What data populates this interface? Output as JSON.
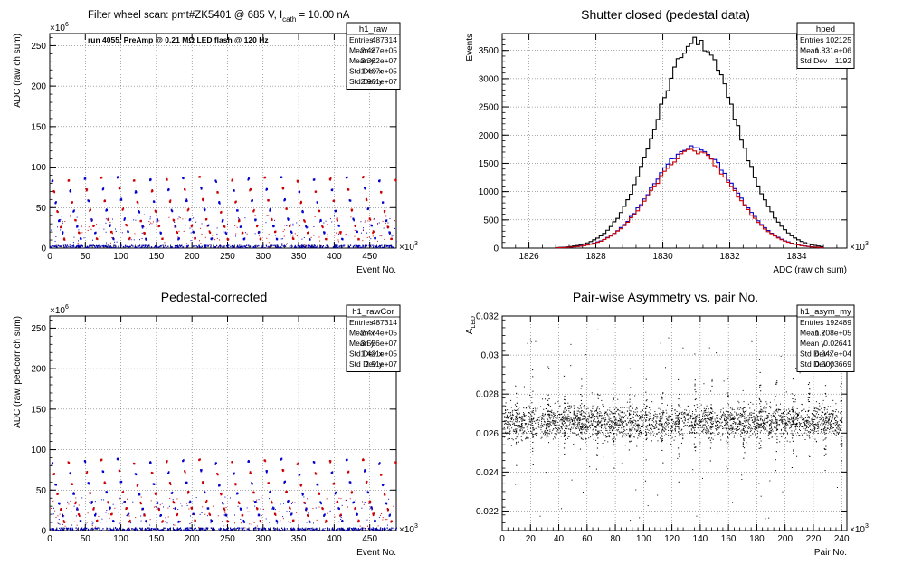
{
  "chart_data": [
    {
      "id": "raw",
      "type": "scatter",
      "title": "Filter wheel scan: pmt#ZK5401 @   685 V, I",
      "title_sub": "cath",
      "title_tail": " = 10.00 nA",
      "annotation": "run 4055, PreAmp @ 0.21 MΩ LED flash @  120 Hz",
      "xlabel": "Event No.",
      "ylabel": "ADC (raw ch sum)",
      "x_exponent": "×10",
      "x_exponent_power": "3",
      "y_exponent": "×10",
      "y_exponent_power": "6",
      "xlim": [
        0,
        487.3
      ],
      "ylim": [
        0,
        265
      ],
      "xticks": [
        0,
        50,
        100,
        150,
        200,
        250,
        300,
        350,
        400,
        450
      ],
      "xtick_labels": [
        "0",
        "50",
        "100",
        "150",
        "200",
        "250",
        "300",
        "350",
        "400",
        "450"
      ],
      "yticks": [
        0,
        50,
        100,
        150,
        200,
        250
      ],
      "ytick_labels": [
        "0",
        "50",
        "100",
        "150",
        "200",
        "250"
      ],
      "grid": true,
      "cycle_period": 23.0,
      "levels": [
        88,
        74,
        60,
        48,
        36,
        28,
        20,
        12
      ],
      "series_colors": [
        "#0000cc",
        "#cc0000"
      ],
      "stats": {
        "name": "h1_raw",
        "rows": [
          {
            "label": "Entries",
            "value": "487314"
          },
          {
            "label": "Mean x",
            "value": "2.437e+05"
          },
          {
            "label": "Mean y",
            "value": "3.362e+07"
          },
          {
            "label": "Std Dev x",
            "value": "1.407e+05"
          },
          {
            "label": "Std Dev y",
            "value": "2.961e+07"
          }
        ]
      }
    },
    {
      "id": "ped",
      "type": "histogram",
      "title": "Shutter closed (pedestal data)",
      "xlabel": "ADC (raw ch sum)",
      "ylabel": "Events",
      "x_exponent": "×10",
      "x_exponent_power": "3",
      "xlim": [
        1825.2,
        1835.5
      ],
      "ylim": [
        0,
        3800
      ],
      "xticks": [
        1826,
        1828,
        1830,
        1832,
        1834
      ],
      "xtick_labels": [
        "1826",
        "1828",
        "1830",
        "1832",
        "1834"
      ],
      "yticks": [
        0,
        500,
        1000,
        1500,
        2000,
        2500,
        3000,
        3500
      ],
      "ytick_labels": [
        "0",
        "500",
        "1000",
        "1500",
        "2000",
        "2500",
        "3000",
        "3500"
      ],
      "grid": true,
      "series": [
        {
          "color": "#000000",
          "peak": 3650,
          "center": 1831.0,
          "sigma": 1.2
        },
        {
          "color": "#0000cc",
          "peak": 1800,
          "center": 1830.9,
          "sigma": 1.2
        },
        {
          "color": "#cc0000",
          "peak": 1720,
          "center": 1830.9,
          "sigma": 1.2
        }
      ],
      "stats": {
        "name": "hped",
        "rows": [
          {
            "label": "Entries",
            "value": "102125"
          },
          {
            "label": "Mean",
            "value": "1.831e+06"
          },
          {
            "label": "Std Dev",
            "value": "1192"
          }
        ]
      }
    },
    {
      "id": "cor",
      "type": "scatter",
      "title": "Pedestal-corrected",
      "xlabel": "Event No.",
      "ylabel": "ADC (raw, ped-corr ch sum)",
      "x_exponent": "×10",
      "x_exponent_power": "3",
      "y_exponent": "×10",
      "y_exponent_power": "6",
      "xlim": [
        0,
        487.3
      ],
      "ylim": [
        0,
        265
      ],
      "xticks": [
        0,
        50,
        100,
        150,
        200,
        250,
        300,
        350,
        400,
        450
      ],
      "xtick_labels": [
        "0",
        "50",
        "100",
        "150",
        "200",
        "250",
        "300",
        "350",
        "400",
        "450"
      ],
      "yticks": [
        0,
        50,
        100,
        150,
        200,
        250
      ],
      "ytick_labels": [
        "0",
        "50",
        "100",
        "150",
        "200",
        "250"
      ],
      "grid": true,
      "cycle_period": 23.0,
      "levels": [
        88,
        74,
        60,
        48,
        36,
        28,
        20,
        12
      ],
      "series_colors": [
        "#0000cc",
        "#cc0000"
      ],
      "stats": {
        "name": "h1_rawCor",
        "rows": [
          {
            "label": "Entries",
            "value": "487314"
          },
          {
            "label": "Mean x",
            "value": "2.474e+05"
          },
          {
            "label": "Mean y",
            "value": "3.556e+07"
          },
          {
            "label": "Std Dev x",
            "value": "1.421e+05"
          },
          {
            "label": "Std Dev y",
            "value": "2.91e+07"
          }
        ]
      }
    },
    {
      "id": "asym",
      "type": "scatter",
      "title": "Pair-wise Asymmetry vs. pair No.",
      "xlabel": "Pair No.",
      "ylabel": "A",
      "ylabel_sub": "LED",
      "x_exponent": "×10",
      "x_exponent_power": "3",
      "xlim": [
        0,
        243.7
      ],
      "ylim": [
        0.021,
        0.032
      ],
      "xticks": [
        0,
        20,
        40,
        60,
        80,
        100,
        120,
        140,
        160,
        180,
        200,
        220,
        240
      ],
      "xtick_labels": [
        "0",
        "20",
        "40",
        "60",
        "80",
        "100",
        "120",
        "140",
        "160",
        "180",
        "200",
        "220",
        "240"
      ],
      "yticks": [
        0.022,
        0.024,
        0.026,
        0.028,
        0.03,
        0.032
      ],
      "ytick_labels": [
        "0.022",
        "0.024",
        "0.026",
        "0.028",
        "0.03",
        "0.032"
      ],
      "grid": true,
      "band_center": 0.0266,
      "band_halfwidth": 0.0008,
      "spike_period": 11.5,
      "stats": {
        "name": "h1_asym_my",
        "rows": [
          {
            "label": "Entries",
            "value": "192489"
          },
          {
            "label": "Mean x",
            "value": "1.208e+05"
          },
          {
            "label": "Mean y",
            "value": "0.02641"
          },
          {
            "label": "Std Dev x",
            "value": "6.947e+04"
          },
          {
            "label": "Std Dev y",
            "value": "0.0003669"
          }
        ]
      }
    }
  ]
}
